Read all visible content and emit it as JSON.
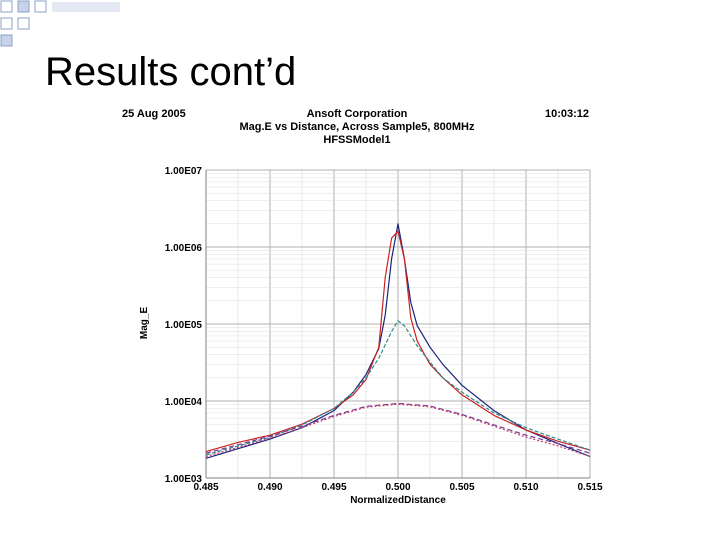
{
  "slide": {
    "title": "Results cont’d"
  },
  "header": {
    "date": "25 Aug 2005",
    "time": "10:03:12",
    "company": "Ansoft Corporation",
    "subtitle": "Mag.E vs Distance, Across Sample5, 800MHz",
    "model": "HFSSModel1"
  },
  "colors": {
    "accent_squares": "#8aa0c8",
    "grid": "#b0b0b0",
    "series": [
      "#1a237e",
      "#cc2222",
      "#2e8b8b",
      "#7a3a9a",
      "#c0406a"
    ]
  },
  "chart_data": {
    "type": "line",
    "title": "Ansoft Corporation",
    "subtitle": "Mag.E vs Distance, Across Sample5, 800MHz",
    "xlabel": "NormalizedDistance",
    "ylabel": "Mag_E",
    "xlim": [
      0.485,
      0.515
    ],
    "ylim": [
      1000,
      10000000
    ],
    "yscale": "log",
    "grid": true,
    "x_ticks": [
      "0.485",
      "0.490",
      "0.495",
      "0.500",
      "0.505",
      "0.510",
      "0.515"
    ],
    "y_ticks": [
      "1.00E03",
      "1.00E04",
      "1.00E05",
      "1.00E06",
      "1.00E07"
    ],
    "series": [
      {
        "x": [
          0.485,
          0.4875,
          0.49,
          0.4925,
          0.495,
          0.4965,
          0.4975,
          0.4985,
          0.499,
          0.4995,
          0.5,
          0.5005,
          0.501,
          0.5015,
          0.5025,
          0.5035,
          0.505,
          0.5075,
          0.51,
          0.5125,
          0.515
        ],
        "y": [
          1800,
          2400,
          3200,
          4500,
          7500,
          13000,
          22000,
          48000,
          130000,
          700000,
          2000000,
          700000,
          190000,
          95000,
          50000,
          30000,
          16000,
          7500,
          4200,
          2800,
          1900
        ]
      },
      {
        "x": [
          0.485,
          0.4875,
          0.49,
          0.4925,
          0.495,
          0.4965,
          0.4975,
          0.4985,
          0.499,
          0.4995,
          0.5,
          0.5005,
          0.501,
          0.5015,
          0.5025,
          0.5035,
          0.505,
          0.5075,
          0.51,
          0.5125,
          0.515
        ],
        "y": [
          2200,
          2900,
          3600,
          5000,
          8000,
          12000,
          19000,
          50000,
          400000,
          1300000,
          1600000,
          700000,
          120000,
          60000,
          30000,
          20000,
          12000,
          6500,
          4200,
          3000,
          2300
        ]
      },
      {
        "x": [
          0.485,
          0.4875,
          0.49,
          0.4925,
          0.495,
          0.4965,
          0.4975,
          0.4985,
          0.4995,
          0.5,
          0.5005,
          0.5015,
          0.5025,
          0.5035,
          0.505,
          0.5075,
          0.51,
          0.5125,
          0.515
        ],
        "y": [
          2000,
          2600,
          3400,
          4900,
          8000,
          13000,
          20000,
          36000,
          80000,
          110000,
          95000,
          52000,
          32000,
          20000,
          13000,
          7000,
          4500,
          3200,
          2300
        ]
      },
      {
        "x": [
          0.485,
          0.4875,
          0.49,
          0.4925,
          0.495,
          0.4975,
          0.5,
          0.5025,
          0.505,
          0.5075,
          0.51,
          0.5125,
          0.515
        ],
        "y": [
          2100,
          2700,
          3500,
          4700,
          6500,
          8500,
          9300,
          8600,
          6700,
          4900,
          3600,
          2800,
          2100
        ]
      },
      {
        "x": [
          0.485,
          0.4875,
          0.49,
          0.4925,
          0.495,
          0.4975,
          0.5,
          0.5025,
          0.505,
          0.5075,
          0.51,
          0.5125,
          0.515
        ],
        "y": [
          1900,
          2500,
          3300,
          4500,
          6300,
          8300,
          9100,
          8400,
          6500,
          4700,
          3400,
          2600,
          1900
        ]
      }
    ]
  }
}
